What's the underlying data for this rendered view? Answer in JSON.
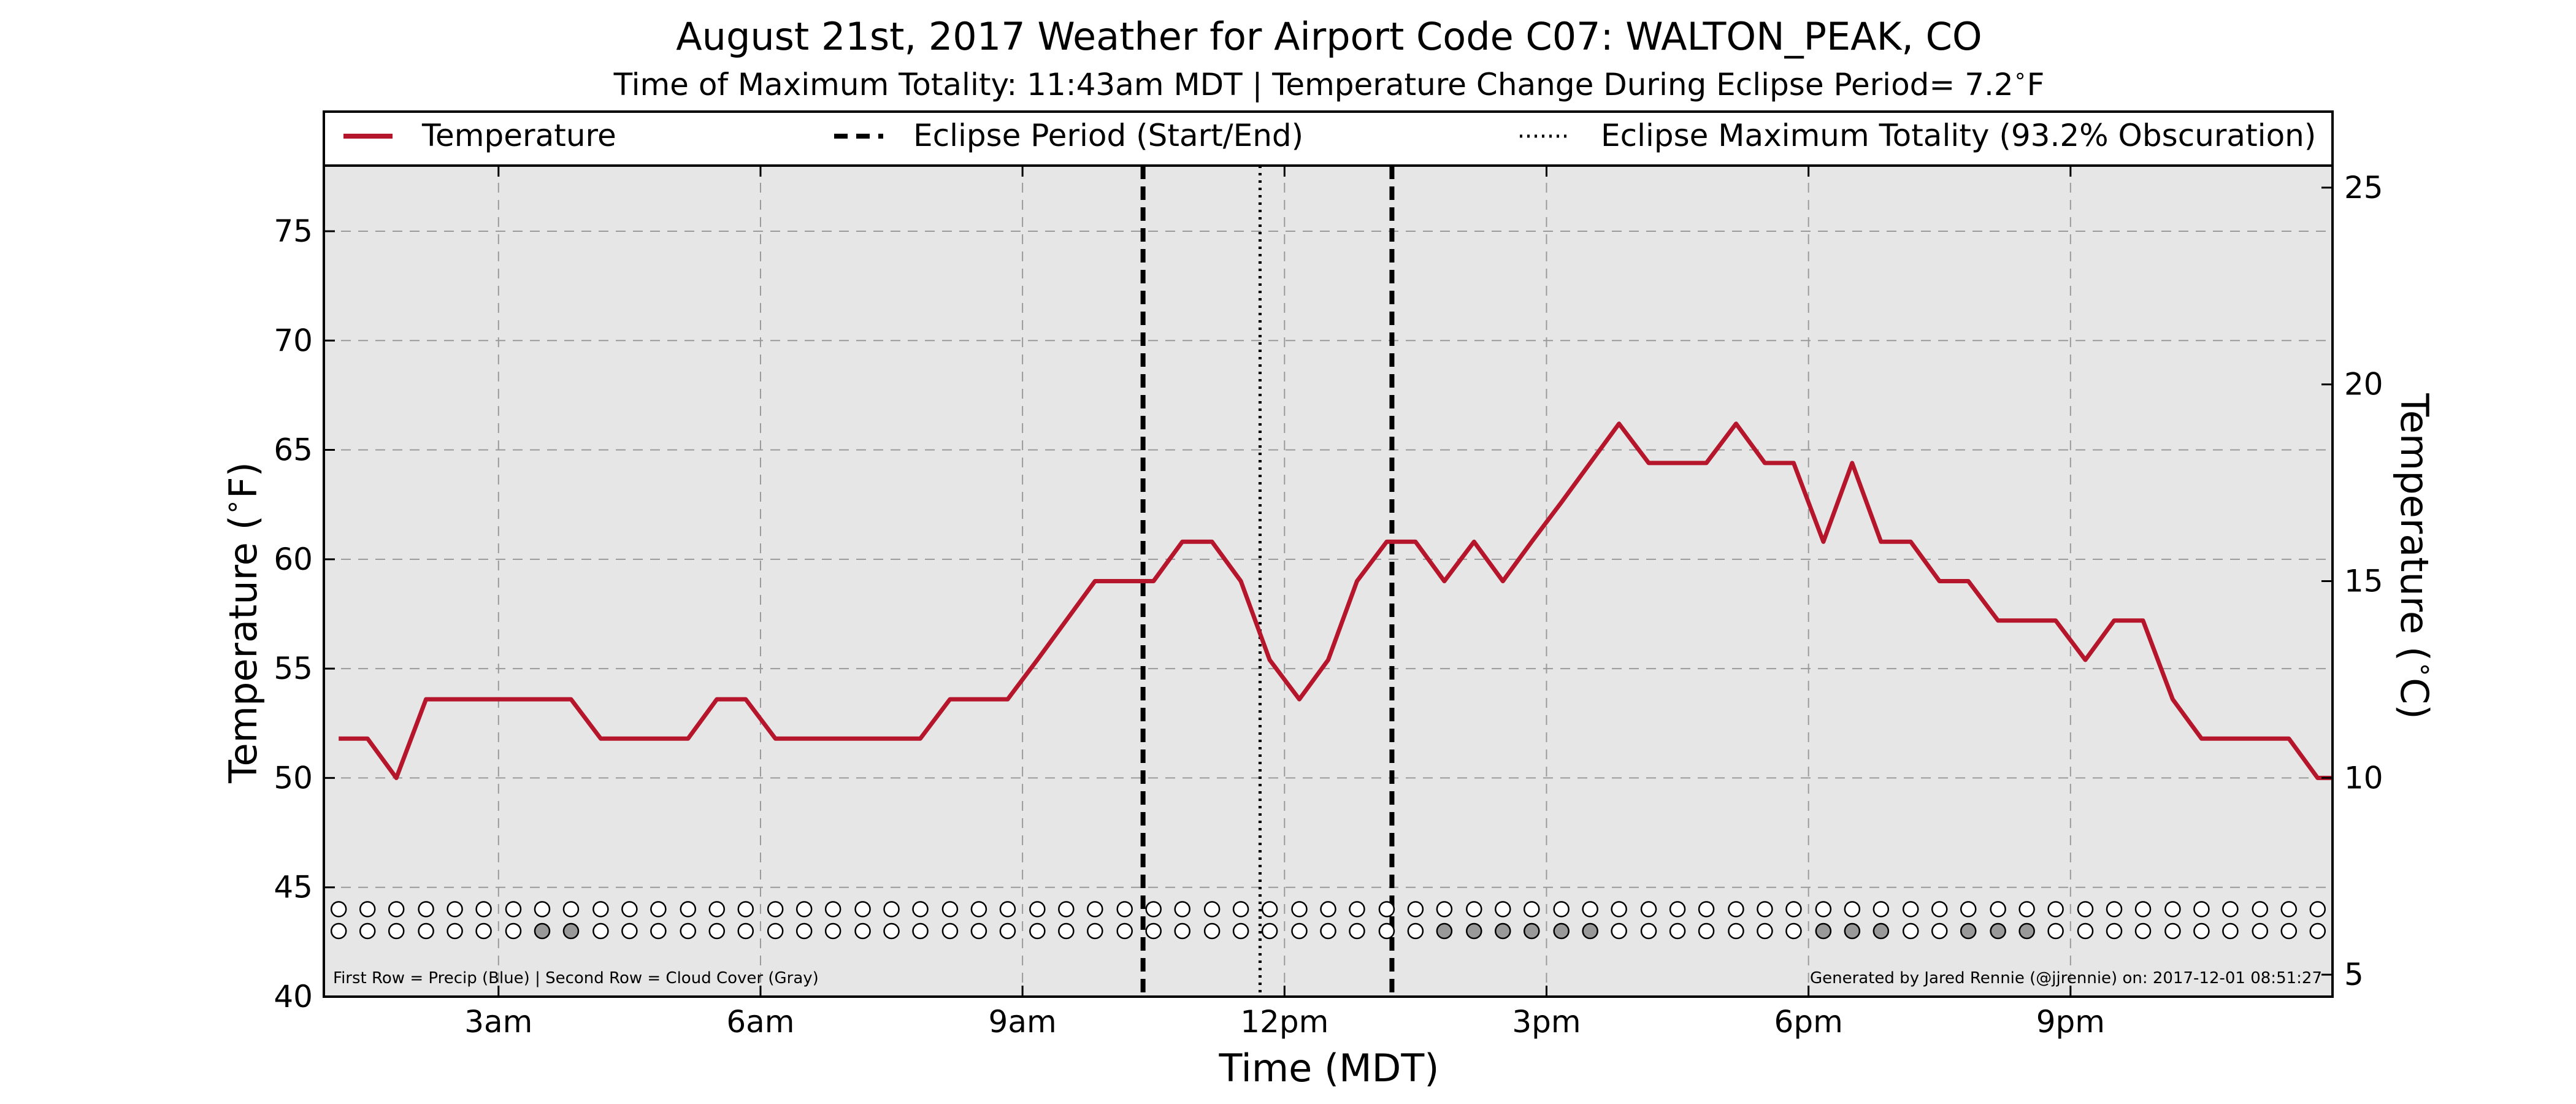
{
  "chart_data": {
    "type": "line",
    "title": "August 21st, 2017 Weather for Airport Code C07: WALTON_PEAK, CO",
    "subtitle": "Time of Maximum Totality: 11:43am MDT | Temperature Change During Eclipse Period= 7.2$^\\circ$F",
    "xlabel": "Time (MDT)",
    "ylabel": "Temperature ($^\\circ$F)",
    "ylabel_right": "Temperature ($^\\circ$C)",
    "x_unit": "hours (MDT, 0 = midnight)",
    "xlim": [
      1.0,
      24.0
    ],
    "ylim": [
      40,
      78
    ],
    "ylim_right_c": [
      4.44,
      25.56
    ],
    "grid": true,
    "legend_position": "top",
    "x_ticks": [
      {
        "x": 3,
        "label": "3am"
      },
      {
        "x": 6,
        "label": "6am"
      },
      {
        "x": 9,
        "label": "9am"
      },
      {
        "x": 12,
        "label": "12pm"
      },
      {
        "x": 15,
        "label": "3pm"
      },
      {
        "x": 18,
        "label": "6pm"
      },
      {
        "x": 21,
        "label": "9pm"
      }
    ],
    "y_ticks": [
      40,
      45,
      50,
      55,
      60,
      65,
      70,
      75
    ],
    "y_ticks_right_c": [
      5,
      10,
      15,
      20,
      25
    ],
    "legend": [
      {
        "label": "Temperature",
        "style": "solid"
      },
      {
        "label": "Eclipse Period (Start/End)",
        "style": "dashed"
      },
      {
        "label": "Eclipse Maximum Totality (93.2% Obscuration)",
        "style": "dotted"
      }
    ],
    "series": [
      {
        "name": "Temperature",
        "color": "#b5162b",
        "points": [
          [
            1.17,
            51.8
          ],
          [
            1.5,
            51.8
          ],
          [
            1.83,
            50.0
          ],
          [
            2.17,
            53.6
          ],
          [
            2.5,
            53.6
          ],
          [
            2.83,
            53.6
          ],
          [
            3.17,
            53.6
          ],
          [
            3.5,
            53.6
          ],
          [
            3.83,
            53.6
          ],
          [
            4.17,
            51.8
          ],
          [
            4.5,
            51.8
          ],
          [
            4.83,
            51.8
          ],
          [
            5.17,
            51.8
          ],
          [
            5.5,
            53.6
          ],
          [
            5.83,
            53.6
          ],
          [
            6.17,
            51.8
          ],
          [
            6.5,
            51.8
          ],
          [
            6.83,
            51.8
          ],
          [
            7.17,
            51.8
          ],
          [
            7.5,
            51.8
          ],
          [
            7.83,
            51.8
          ],
          [
            8.17,
            53.6
          ],
          [
            8.5,
            53.6
          ],
          [
            8.83,
            53.6
          ],
          [
            9.17,
            55.4
          ],
          [
            9.5,
            57.2
          ],
          [
            9.83,
            59.0
          ],
          [
            10.17,
            59.0
          ],
          [
            10.5,
            59.0
          ],
          [
            10.83,
            60.8
          ],
          [
            11.17,
            60.8
          ],
          [
            11.5,
            59.0
          ],
          [
            11.83,
            55.4
          ],
          [
            12.17,
            53.6
          ],
          [
            12.5,
            55.4
          ],
          [
            12.83,
            59.0
          ],
          [
            13.17,
            60.8
          ],
          [
            13.5,
            60.8
          ],
          [
            13.83,
            59.0
          ],
          [
            14.17,
            60.8
          ],
          [
            14.5,
            59.0
          ],
          [
            14.83,
            60.8
          ],
          [
            15.17,
            62.6
          ],
          [
            15.5,
            64.4
          ],
          [
            15.83,
            66.2
          ],
          [
            16.17,
            64.4
          ],
          [
            16.5,
            64.4
          ],
          [
            16.83,
            64.4
          ],
          [
            17.17,
            66.2
          ],
          [
            17.5,
            64.4
          ],
          [
            17.83,
            64.4
          ],
          [
            18.17,
            60.8
          ],
          [
            18.5,
            64.4
          ],
          [
            18.83,
            60.8
          ],
          [
            19.17,
            60.8
          ],
          [
            19.5,
            59.0
          ],
          [
            19.83,
            59.0
          ],
          [
            20.17,
            57.2
          ],
          [
            20.5,
            57.2
          ],
          [
            20.83,
            57.2
          ],
          [
            21.17,
            55.4
          ],
          [
            21.5,
            57.2
          ],
          [
            21.83,
            57.2
          ],
          [
            22.17,
            53.6
          ],
          [
            22.5,
            51.8
          ],
          [
            22.83,
            51.8
          ],
          [
            23.17,
            51.8
          ],
          [
            23.5,
            51.8
          ],
          [
            23.83,
            50.0
          ],
          [
            24.0,
            50.0
          ]
        ]
      }
    ],
    "eclipse_start": 10.38,
    "eclipse_end": 13.23,
    "eclipse_max": 11.72,
    "precip_row": {
      "y": 44.0,
      "x": [
        1.17,
        1.5,
        1.83,
        2.17,
        2.5,
        2.83,
        3.17,
        3.5,
        3.83,
        4.17,
        4.5,
        4.83,
        5.17,
        5.5,
        5.83,
        6.17,
        6.5,
        6.83,
        7.17,
        7.5,
        7.83,
        8.17,
        8.5,
        8.83,
        9.17,
        9.5,
        9.83,
        10.17,
        10.5,
        10.83,
        11.17,
        11.5,
        11.83,
        12.17,
        12.5,
        12.83,
        13.17,
        13.5,
        13.83,
        14.17,
        14.5,
        14.83,
        15.17,
        15.5,
        15.83,
        16.17,
        16.5,
        16.83,
        17.17,
        17.5,
        17.83,
        18.17,
        18.5,
        18.83,
        19.17,
        19.5,
        19.83,
        20.17,
        20.5,
        20.83,
        21.17,
        21.5,
        21.83,
        22.17,
        22.5,
        22.83,
        23.17,
        23.5,
        23.83
      ],
      "filled_x": []
    },
    "cloud_row": {
      "y": 43.0,
      "x": [
        1.17,
        1.5,
        1.83,
        2.17,
        2.5,
        2.83,
        3.17,
        3.5,
        3.83,
        4.17,
        4.5,
        4.83,
        5.17,
        5.5,
        5.83,
        6.17,
        6.5,
        6.83,
        7.17,
        7.5,
        7.83,
        8.17,
        8.5,
        8.83,
        9.17,
        9.5,
        9.83,
        10.17,
        10.5,
        10.83,
        11.17,
        11.5,
        11.83,
        12.17,
        12.5,
        12.83,
        13.17,
        13.5,
        13.83,
        14.17,
        14.5,
        14.83,
        15.17,
        15.5,
        15.83,
        16.17,
        16.5,
        16.83,
        17.17,
        17.5,
        17.83,
        18.17,
        18.5,
        18.83,
        19.17,
        19.5,
        19.83,
        20.17,
        20.5,
        20.83,
        21.17,
        21.5,
        21.83,
        22.17,
        22.5,
        22.83,
        23.17,
        23.5,
        23.83
      ],
      "filled_x": [
        3.5,
        3.83,
        13.83,
        14.17,
        14.5,
        14.83,
        15.17,
        15.5,
        18.17,
        18.5,
        18.83,
        19.83,
        20.17,
        20.5
      ]
    },
    "colors": {
      "temperature": "#b5162b",
      "plot_background": "#e6e6e6",
      "cloud_filled": "#999999",
      "marker_empty": "#ffffff"
    },
    "footer_left": "First Row = Precip (Blue) | Second Row = Cloud Cover (Gray)",
    "footer_right": "Generated by Jared Rennie (@jjrennie) on: 2017-12-01 08:51:27"
  }
}
